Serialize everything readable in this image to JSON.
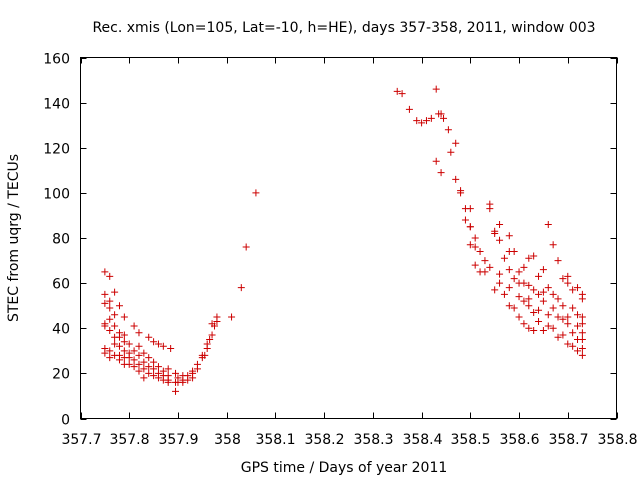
{
  "chart_data": {
    "type": "scatter",
    "title": "Rec. xmis (Lon=105, Lat=-10, h=HE), days 357-358, 2011, window 003",
    "xlabel": "GPS time / Days of year 2011",
    "ylabel": "STEC from uqrg / TECUs",
    "xlim": [
      357.7,
      358.8
    ],
    "ylim": [
      0,
      160
    ],
    "xticks": [
      357.7,
      357.8,
      357.9,
      358,
      358.1,
      358.2,
      358.3,
      358.4,
      358.5,
      358.6,
      358.7,
      358.8
    ],
    "xtick_labels": [
      "357.7",
      "357.8",
      "357.9",
      "358",
      "358.1",
      "358.2",
      "358.3",
      "358.4",
      "358.5",
      "358.6",
      "358.7",
      "358.8"
    ],
    "yticks": [
      0,
      20,
      40,
      60,
      80,
      100,
      120,
      140,
      160
    ],
    "ytick_labels": [
      "0",
      "20",
      "40",
      "60",
      "80",
      "100",
      "120",
      "140",
      "160"
    ],
    "grid": false,
    "marker": "+",
    "color": "#cc0000",
    "series": [
      {
        "name": "STEC",
        "points": [
          [
            357.75,
            65
          ],
          [
            357.75,
            55
          ],
          [
            357.75,
            51
          ],
          [
            357.75,
            42
          ],
          [
            357.75,
            41
          ],
          [
            357.75,
            31
          ],
          [
            357.75,
            29
          ],
          [
            357.76,
            63
          ],
          [
            357.76,
            52
          ],
          [
            357.76,
            49
          ],
          [
            357.76,
            44
          ],
          [
            357.76,
            39
          ],
          [
            357.76,
            30
          ],
          [
            357.76,
            27
          ],
          [
            357.77,
            56
          ],
          [
            357.77,
            46
          ],
          [
            357.77,
            41
          ],
          [
            357.77,
            36
          ],
          [
            357.77,
            33
          ],
          [
            357.77,
            28
          ],
          [
            357.78,
            50
          ],
          [
            357.78,
            38
          ],
          [
            357.78,
            36
          ],
          [
            357.78,
            32
          ],
          [
            357.78,
            28
          ],
          [
            357.78,
            26
          ],
          [
            357.79,
            45
          ],
          [
            357.79,
            37
          ],
          [
            357.79,
            34
          ],
          [
            357.79,
            30
          ],
          [
            357.79,
            27
          ],
          [
            357.79,
            24
          ],
          [
            357.8,
            33
          ],
          [
            357.8,
            29
          ],
          [
            357.8,
            27
          ],
          [
            357.8,
            24
          ],
          [
            357.81,
            41
          ],
          [
            357.81,
            30
          ],
          [
            357.81,
            26
          ],
          [
            357.81,
            23
          ],
          [
            357.82,
            38
          ],
          [
            357.82,
            32
          ],
          [
            357.82,
            28
          ],
          [
            357.82,
            24
          ],
          [
            357.82,
            21
          ],
          [
            357.83,
            29
          ],
          [
            357.83,
            25
          ],
          [
            357.83,
            22
          ],
          [
            357.83,
            18
          ],
          [
            357.84,
            36
          ],
          [
            357.84,
            27
          ],
          [
            357.84,
            23
          ],
          [
            357.84,
            20
          ],
          [
            357.85,
            34
          ],
          [
            357.85,
            25
          ],
          [
            357.85,
            22
          ],
          [
            357.85,
            19
          ],
          [
            357.86,
            33
          ],
          [
            357.86,
            23
          ],
          [
            357.86,
            20
          ],
          [
            357.86,
            18
          ],
          [
            357.87,
            32
          ],
          [
            357.87,
            21
          ],
          [
            357.87,
            19
          ],
          [
            357.87,
            17
          ],
          [
            357.88,
            22
          ],
          [
            357.88,
            19
          ],
          [
            357.88,
            17
          ],
          [
            357.88,
            16
          ],
          [
            357.885,
            31
          ],
          [
            357.895,
            20
          ],
          [
            357.895,
            16
          ],
          [
            357.895,
            12
          ],
          [
            357.9,
            18
          ],
          [
            357.9,
            16
          ],
          [
            357.91,
            19
          ],
          [
            357.91,
            17
          ],
          [
            357.91,
            16
          ],
          [
            357.92,
            19
          ],
          [
            357.92,
            17
          ],
          [
            357.93,
            20
          ],
          [
            357.93,
            18
          ],
          [
            357.93,
            21
          ],
          [
            357.94,
            22
          ],
          [
            357.94,
            24
          ],
          [
            357.95,
            27
          ],
          [
            357.95,
            28
          ],
          [
            357.955,
            28
          ],
          [
            357.96,
            31
          ],
          [
            357.96,
            33
          ],
          [
            357.965,
            35
          ],
          [
            357.97,
            37
          ],
          [
            357.97,
            42
          ],
          [
            357.975,
            41
          ],
          [
            357.98,
            45
          ],
          [
            357.98,
            43
          ],
          [
            358.01,
            45
          ],
          [
            358.03,
            58
          ],
          [
            358.04,
            76
          ],
          [
            358.06,
            100
          ],
          [
            358.35,
            145
          ],
          [
            358.36,
            144
          ],
          [
            358.375,
            137
          ],
          [
            358.39,
            132
          ],
          [
            358.4,
            131
          ],
          [
            358.41,
            132
          ],
          [
            358.42,
            133
          ],
          [
            358.43,
            146
          ],
          [
            358.435,
            135
          ],
          [
            358.44,
            135
          ],
          [
            358.445,
            133
          ],
          [
            358.43,
            114
          ],
          [
            358.44,
            109
          ],
          [
            358.455,
            128
          ],
          [
            358.46,
            118
          ],
          [
            358.47,
            122
          ],
          [
            358.47,
            106
          ],
          [
            358.48,
            101
          ],
          [
            358.48,
            100
          ],
          [
            358.49,
            93
          ],
          [
            358.49,
            88
          ],
          [
            358.5,
            93
          ],
          [
            358.5,
            85
          ],
          [
            358.5,
            85
          ],
          [
            358.5,
            77
          ],
          [
            358.51,
            80
          ],
          [
            358.51,
            76
          ],
          [
            358.51,
            68
          ],
          [
            358.52,
            74
          ],
          [
            358.52,
            65
          ],
          [
            358.53,
            70
          ],
          [
            358.53,
            65
          ],
          [
            358.54,
            95
          ],
          [
            358.54,
            93
          ],
          [
            358.54,
            67
          ],
          [
            358.55,
            83
          ],
          [
            358.55,
            82
          ],
          [
            358.55,
            57
          ],
          [
            358.56,
            86
          ],
          [
            358.56,
            79
          ],
          [
            358.56,
            64
          ],
          [
            358.56,
            60
          ],
          [
            358.57,
            71
          ],
          [
            358.57,
            55
          ],
          [
            358.58,
            81
          ],
          [
            358.58,
            74
          ],
          [
            358.58,
            66
          ],
          [
            358.58,
            58
          ],
          [
            358.58,
            50
          ],
          [
            358.59,
            74
          ],
          [
            358.59,
            62
          ],
          [
            358.59,
            49
          ],
          [
            358.6,
            65
          ],
          [
            358.6,
            60
          ],
          [
            358.6,
            54
          ],
          [
            358.6,
            45
          ],
          [
            358.61,
            67
          ],
          [
            358.61,
            60
          ],
          [
            358.61,
            52
          ],
          [
            358.61,
            42
          ],
          [
            358.62,
            71
          ],
          [
            358.62,
            59
          ],
          [
            358.62,
            53
          ],
          [
            358.62,
            50
          ],
          [
            358.62,
            40
          ],
          [
            358.63,
            72
          ],
          [
            358.63,
            57
          ],
          [
            358.63,
            47
          ],
          [
            358.63,
            39
          ],
          [
            358.64,
            63
          ],
          [
            358.64,
            55
          ],
          [
            358.64,
            48
          ],
          [
            358.64,
            43
          ],
          [
            358.65,
            66
          ],
          [
            358.65,
            56
          ],
          [
            358.65,
            52
          ],
          [
            358.65,
            39
          ],
          [
            358.66,
            86
          ],
          [
            358.66,
            58
          ],
          [
            358.66,
            46
          ],
          [
            358.66,
            41
          ],
          [
            358.67,
            77
          ],
          [
            358.67,
            55
          ],
          [
            358.67,
            49
          ],
          [
            358.67,
            40
          ],
          [
            358.68,
            70
          ],
          [
            358.68,
            53
          ],
          [
            358.68,
            45
          ],
          [
            358.68,
            36
          ],
          [
            358.69,
            62
          ],
          [
            358.69,
            50
          ],
          [
            358.69,
            44
          ],
          [
            358.69,
            37
          ],
          [
            358.7,
            63
          ],
          [
            358.7,
            60
          ],
          [
            358.7,
            45
          ],
          [
            358.7,
            42
          ],
          [
            358.7,
            33
          ],
          [
            358.71,
            57
          ],
          [
            358.71,
            49
          ],
          [
            358.71,
            38
          ],
          [
            358.71,
            32
          ],
          [
            358.72,
            58
          ],
          [
            358.72,
            46
          ],
          [
            358.72,
            41
          ],
          [
            358.72,
            35
          ],
          [
            358.72,
            30
          ],
          [
            358.73,
            55
          ],
          [
            358.73,
            53
          ],
          [
            358.73,
            45
          ],
          [
            358.73,
            42
          ],
          [
            358.73,
            38
          ],
          [
            358.73,
            35
          ],
          [
            358.73,
            31
          ],
          [
            358.73,
            28
          ]
        ]
      }
    ]
  }
}
